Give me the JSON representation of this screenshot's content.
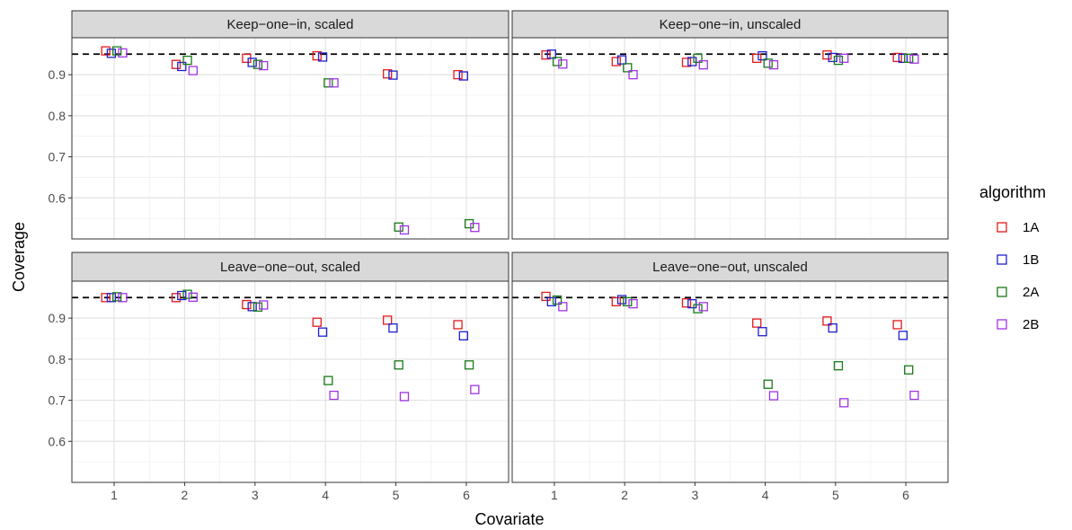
{
  "chart_data": {
    "type": "scatter",
    "xlabel": "Covariate",
    "ylabel": "Coverage",
    "x_ticks": [
      "1",
      "2",
      "3",
      "4",
      "5",
      "6"
    ],
    "y_ticks": [
      "0.6",
      "0.7",
      "0.8",
      "0.9"
    ],
    "reference_line": 0.95,
    "grid": true,
    "legend": {
      "title": "algorithm",
      "position": "right",
      "entries": [
        {
          "name": "1A",
          "color": "#e41a1c"
        },
        {
          "name": "1B",
          "color": "#1f1fd0"
        },
        {
          "name": "2A",
          "color": "#1a7a1a"
        },
        {
          "name": "2B",
          "color": "#a033e6"
        }
      ]
    },
    "panels": [
      {
        "title": "Keep−one−in, scaled",
        "ylim": [
          0.5,
          0.99
        ],
        "series": [
          {
            "name": "1A",
            "values": [
              0.958,
              0.925,
              0.94,
              0.946,
              0.902,
              0.9
            ]
          },
          {
            "name": "1B",
            "values": [
              0.952,
              0.92,
              0.93,
              0.943,
              0.899,
              0.897
            ]
          },
          {
            "name": "2A",
            "values": [
              0.958,
              0.935,
              0.925,
              0.88,
              0.529,
              0.537
            ]
          },
          {
            "name": "2B",
            "values": [
              0.953,
              0.91,
              0.922,
              0.88,
              0.522,
              0.528
            ]
          }
        ]
      },
      {
        "title": "Keep−one−in, unscaled",
        "ylim": [
          0.5,
          0.99
        ],
        "series": [
          {
            "name": "1A",
            "values": [
              0.948,
              0.932,
              0.93,
              0.94,
              0.948,
              0.942
            ]
          },
          {
            "name": "1B",
            "values": [
              0.95,
              0.936,
              0.932,
              0.946,
              0.942,
              0.94
            ]
          },
          {
            "name": "2A",
            "values": [
              0.932,
              0.917,
              0.94,
              0.928,
              0.935,
              0.94
            ]
          },
          {
            "name": "2B",
            "values": [
              0.926,
              0.9,
              0.924,
              0.924,
              0.94,
              0.938
            ]
          }
        ]
      },
      {
        "title": "Leave−one−out, scaled",
        "ylim": [
          0.5,
          0.99
        ],
        "series": [
          {
            "name": "1A",
            "values": [
              0.95,
              0.95,
              0.933,
              0.89,
              0.895,
              0.884
            ]
          },
          {
            "name": "1B",
            "values": [
              0.95,
              0.955,
              0.928,
              0.866,
              0.876,
              0.857
            ]
          },
          {
            "name": "2A",
            "values": [
              0.952,
              0.958,
              0.927,
              0.748,
              0.786,
              0.786
            ]
          },
          {
            "name": "2B",
            "values": [
              0.95,
              0.951,
              0.932,
              0.712,
              0.709,
              0.726
            ]
          }
        ]
      },
      {
        "title": "Leave−one−out, unscaled",
        "ylim": [
          0.5,
          0.99
        ],
        "series": [
          {
            "name": "1A",
            "values": [
              0.953,
              0.94,
              0.937,
              0.888,
              0.893,
              0.884
            ]
          },
          {
            "name": "1B",
            "values": [
              0.94,
              0.945,
              0.935,
              0.867,
              0.876,
              0.858
            ]
          },
          {
            "name": "2A",
            "values": [
              0.944,
              0.94,
              0.923,
              0.739,
              0.784,
              0.774
            ]
          },
          {
            "name": "2B",
            "values": [
              0.928,
              0.935,
              0.928,
              0.711,
              0.694,
              0.712
            ]
          }
        ]
      }
    ]
  }
}
